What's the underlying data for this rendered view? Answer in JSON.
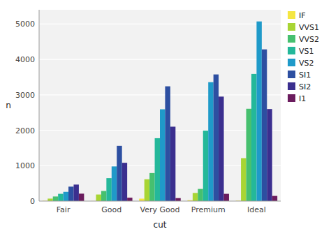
{
  "chart_data": {
    "type": "bar",
    "x_label": "cut",
    "y_label": "n",
    "categories": [
      "Fair",
      "Good",
      "Very Good",
      "Premium",
      "Ideal"
    ],
    "series": [
      {
        "name": "IF",
        "color": "#f5e642",
        "values": [
          8,
          3,
          69,
          25,
          11
        ]
      },
      {
        "name": "VVS1",
        "color": "#a8d534",
        "values": [
          70,
          186,
          616,
          230,
          1212
        ]
      },
      {
        "name": "VVS2",
        "color": "#46c06f",
        "values": [
          130,
          286,
          791,
          343,
          2606
        ]
      },
      {
        "name": "VS1",
        "color": "#24b89a",
        "values": [
          205,
          648,
          1775,
          1989,
          3589
        ]
      },
      {
        "name": "VS2",
        "color": "#1f9ac9",
        "values": [
          261,
          978,
          2591,
          3357,
          5071
        ]
      },
      {
        "name": "SI1",
        "color": "#2d4fa1",
        "values": [
          408,
          1560,
          3240,
          3575,
          4282
        ]
      },
      {
        "name": "SI2",
        "color": "#3b2f8f",
        "values": [
          466,
          1081,
          2100,
          2949,
          2598
        ]
      },
      {
        "name": "I1",
        "color": "#6b1c5e",
        "values": [
          210,
          96,
          84,
          205,
          146
        ]
      }
    ],
    "ylim": [
      0,
      5400
    ],
    "yticks": [
      0,
      1000,
      2000,
      3000,
      4000,
      5000
    ],
    "grid": true,
    "legend": "right"
  }
}
